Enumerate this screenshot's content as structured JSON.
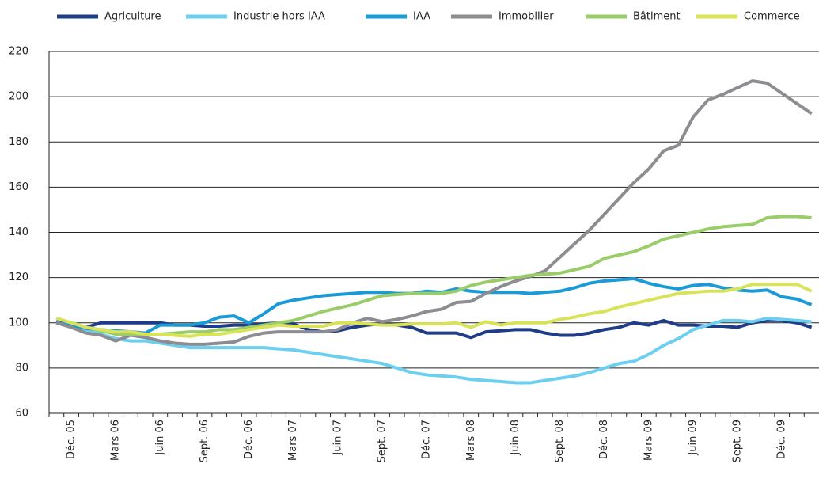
{
  "chart_data": {
    "type": "line",
    "categories": [
      null,
      "Déc. 05",
      null,
      null,
      "Mars 06",
      null,
      null,
      "Juin 06",
      null,
      null,
      "Sept. 06",
      null,
      null,
      "Déc. 06",
      null,
      null,
      "Mars 07",
      null,
      null,
      "Juin 07",
      null,
      null,
      "Sept. 07",
      null,
      null,
      "Déc. 07",
      null,
      null,
      "Mars 08",
      null,
      null,
      "Juin 08",
      null,
      null,
      "Sept. 08",
      null,
      null,
      "Déc. 08",
      null,
      null,
      "Mars 09",
      null,
      null,
      "Juin 09",
      null,
      null,
      "Sept. 09",
      null,
      null,
      "Déc. 09",
      null,
      null
    ],
    "series": [
      {
        "name": "Agriculture",
        "color": "#1f3c88",
        "values": [
          101,
          99,
          98,
          100,
          100,
          100,
          100,
          100,
          99,
          99,
          98.5,
          98.5,
          99,
          99,
          99.5,
          100,
          99.5,
          97,
          96,
          96.5,
          98,
          99,
          99.5,
          99,
          98,
          95.5,
          95.5,
          95.5,
          93.5,
          96,
          96.5,
          97,
          97,
          95.5,
          94.5,
          94.5,
          95.5,
          97,
          98,
          100,
          99,
          101,
          99,
          99,
          98.5,
          98.5,
          98,
          100,
          101,
          101,
          100,
          98
        ]
      },
      {
        "name": "Industrie hors IAA",
        "color": "#6ccff0",
        "values": [
          100,
          99,
          97,
          95,
          93,
          92,
          92,
          91,
          90,
          89,
          89,
          89,
          89,
          89,
          89,
          88.5,
          88,
          87,
          86,
          85,
          84,
          83,
          82,
          80,
          78,
          77,
          76.5,
          76,
          75,
          74.5,
          74,
          73.5,
          73.5,
          74.5,
          75.5,
          76.5,
          78,
          80,
          82,
          83,
          86,
          90,
          93,
          97,
          99,
          101,
          101,
          100.5,
          102,
          101.5,
          101,
          100.5
        ]
      },
      {
        "name": "IAA",
        "color": "#1a9ad6",
        "values": [
          100,
          99,
          97.5,
          97,
          96.5,
          96,
          95.5,
          99,
          99,
          99,
          100,
          102.5,
          103,
          100,
          104,
          108.5,
          110,
          111,
          112,
          112.5,
          113,
          113.5,
          113.5,
          113,
          113,
          114,
          113.5,
          115,
          114,
          113.5,
          113.5,
          113.5,
          113,
          113.5,
          114,
          115.5,
          117.5,
          118.5,
          119,
          119.5,
          117.5,
          116,
          115,
          116.5,
          117,
          115.5,
          114.5,
          114,
          114.5,
          111.5,
          110.5,
          108
        ]
      },
      {
        "name": "Immobilier",
        "color": "#8c8c91",
        "values": [
          100,
          98,
          95.5,
          94.5,
          92,
          94.5,
          93.5,
          92,
          91,
          90.5,
          90.5,
          91,
          91.5,
          94,
          95.5,
          96,
          96,
          96,
          96,
          97,
          100,
          102,
          100.5,
          101.5,
          103,
          105,
          106,
          109,
          109.5,
          113,
          116,
          118.5,
          120.5,
          123,
          129,
          135,
          141,
          148,
          155,
          162,
          168,
          176,
          178.5,
          191,
          198.5,
          201,
          204,
          207,
          206,
          201.5,
          197,
          192.5
        ]
      },
      {
        "name": "Bâtiment",
        "color": "#9acd6a",
        "values": [
          102,
          100,
          98,
          96.5,
          95,
          95,
          95,
          95,
          95.5,
          96,
          96,
          97,
          97,
          98,
          99,
          100,
          101,
          103,
          105,
          106.5,
          108,
          110,
          112,
          112.5,
          113,
          113,
          113,
          114,
          116.5,
          118,
          119,
          120,
          121,
          121.5,
          122,
          123.5,
          125,
          128.5,
          130,
          131.5,
          134,
          137,
          138.5,
          140,
          141.5,
          142.5,
          143,
          143.5,
          146.5,
          147,
          147,
          146.5
        ]
      },
      {
        "name": "Commerce",
        "color": "#d9e35a",
        "values": [
          102,
          100,
          98,
          97,
          96,
          96,
          95,
          95,
          94.5,
          94,
          95,
          95,
          96,
          97,
          98,
          99,
          98.5,
          98.5,
          98.5,
          100,
          100,
          99.5,
          99,
          99,
          99.5,
          99.5,
          99.5,
          100,
          98,
          100.5,
          99,
          100,
          100,
          100,
          101.5,
          102.5,
          104,
          105,
          107,
          108.5,
          110,
          111.5,
          113,
          113.5,
          114,
          114,
          115,
          117,
          117,
          117,
          117,
          114
        ]
      }
    ],
    "ylim": [
      60,
      220
    ],
    "yticks": [
      60,
      80,
      100,
      120,
      140,
      160,
      180,
      200,
      220
    ],
    "grid": true,
    "legend": "top"
  }
}
